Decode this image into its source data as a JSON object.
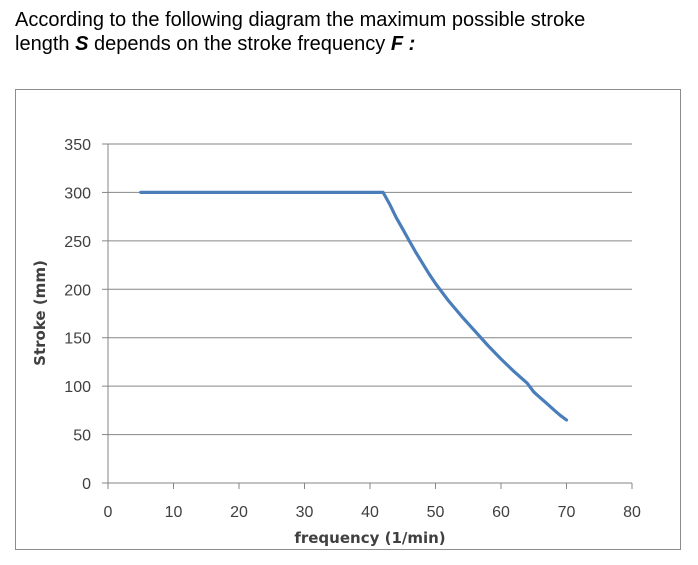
{
  "intro": {
    "line1": "According to the following diagram the maximum possible stroke",
    "line2_a": "length ",
    "line2_var_s": "S",
    "line2_b": " depends on the stroke frequency ",
    "line2_var_f": "F :"
  },
  "colors": {
    "series": "#4a7ebb",
    "grid": "#868686",
    "axis": "#868686",
    "frame": "#8c8c8c",
    "tick_text": "#404040"
  },
  "chart_data": {
    "type": "line",
    "title": "",
    "xlabel": "frequency (1/min)",
    "ylabel": "Stroke (mm)",
    "xlim": [
      0,
      80
    ],
    "ylim": [
      0,
      350
    ],
    "xticks": [
      0,
      10,
      20,
      30,
      40,
      50,
      60,
      70,
      80
    ],
    "yticks": [
      0,
      50,
      100,
      150,
      200,
      250,
      300,
      350
    ],
    "grid": true,
    "legend": "none",
    "series": [
      {
        "x": [
          5,
          10,
          20,
          30,
          40,
          42,
          43,
          44,
          45,
          46,
          47,
          48,
          49,
          50,
          52,
          54,
          56,
          58,
          60,
          62,
          64,
          65,
          66,
          67,
          68,
          69,
          70
        ],
        "y": [
          300,
          300,
          300,
          300,
          300,
          300,
          288,
          274,
          262,
          250,
          238,
          227,
          216,
          206,
          188,
          172,
          157,
          142,
          128,
          115,
          103,
          94,
          88,
          82,
          76,
          70,
          65
        ]
      }
    ]
  }
}
